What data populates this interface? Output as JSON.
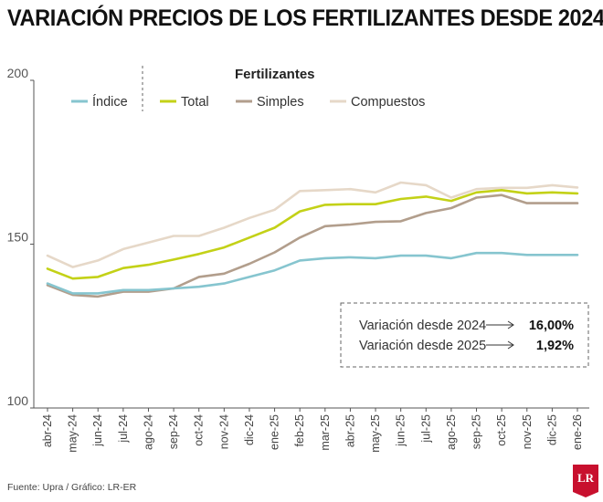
{
  "title": "VARIACIÓN PRECIOS DE LOS FERTILIZANTES DESDE 2024",
  "source": "Fuente: Upra / Gráfico: LR-ER",
  "logo": "LR",
  "legend_title": "Fertilizantes",
  "variation_box": {
    "items": [
      {
        "label": "Variación desde 2024",
        "value": "16,00%"
      },
      {
        "label": "Variación desde 2025",
        "value": "1,92%"
      }
    ]
  },
  "chart_data": {
    "type": "line",
    "x": [
      "abr-24",
      "may-24",
      "jun-24",
      "jul-24",
      "ago-24",
      "sep-24",
      "oct-24",
      "nov-24",
      "dic-24",
      "ene-25",
      "feb-25",
      "mar-25",
      "abr-25",
      "may-25",
      "jun-25",
      "jul-25",
      "ago-25",
      "sep-25",
      "oct-25",
      "nov-25",
      "dic-25",
      "ene-26"
    ],
    "ylim": [
      100,
      200
    ],
    "yticks": [
      100,
      150,
      200
    ],
    "grid": false,
    "legend_position": "top",
    "series": [
      {
        "name": "Índice",
        "color": "#86c5cf",
        "values": [
          138,
          135,
          135,
          136,
          136,
          136.5,
          137,
          138,
          140,
          142,
          145,
          145.7,
          146,
          145.7,
          146.5,
          146.5,
          145.7,
          147.3,
          147.3,
          146.7,
          146.7,
          146.7
        ]
      },
      {
        "name": "Total",
        "color": "#c3d117",
        "values": [
          142.5,
          139.5,
          140,
          142.7,
          143.7,
          145.3,
          147,
          149,
          152,
          155,
          160,
          162,
          162.2,
          162.2,
          163.8,
          164.5,
          163.2,
          165.8,
          166.5,
          165.5,
          165.8,
          165.5
        ]
      },
      {
        "name": "Simples",
        "color": "#b29e8c",
        "values": [
          137.5,
          134.5,
          134,
          135.5,
          135.5,
          136.5,
          140,
          141,
          144,
          147.5,
          152,
          155.5,
          156,
          156.8,
          157,
          159.5,
          161,
          164.2,
          165,
          162.5,
          162.5,
          162.5
        ]
      },
      {
        "name": "Compuestos",
        "color": "#e6d8c8",
        "values": [
          146.5,
          143,
          145,
          148.5,
          150.5,
          152.5,
          152.5,
          155,
          158,
          160.5,
          166.2,
          166.5,
          166.8,
          165.8,
          168.8,
          168,
          164.2,
          166.8,
          167.2,
          167.2,
          168,
          167.3
        ]
      }
    ]
  }
}
